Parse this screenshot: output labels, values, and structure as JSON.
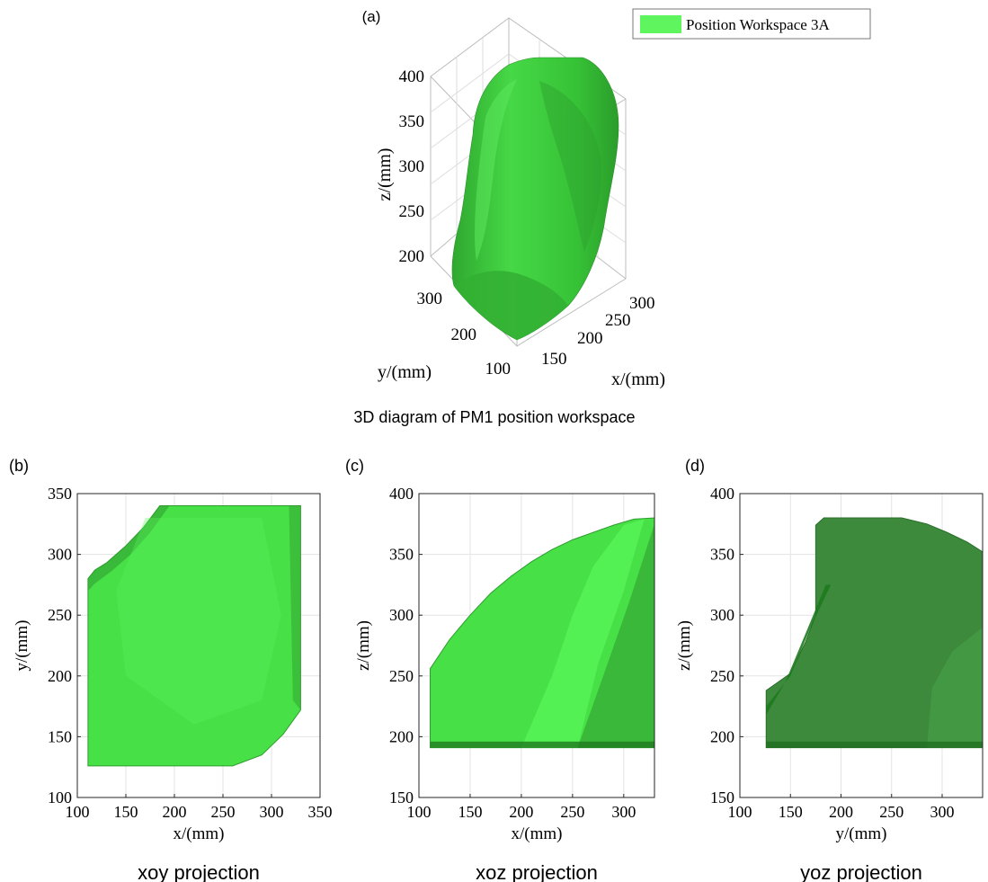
{
  "chart_data": [
    {
      "panel": "(a)",
      "type": "area",
      "title": "3D diagram of PM1 position workspace",
      "legend": {
        "label": "Position Workspace 3A",
        "color": "#5ef55e",
        "placement": "top-right"
      },
      "xlabel": "x/(mm)",
      "ylabel": "y/(mm)",
      "zlabel": "z/(mm)",
      "xticks": [
        150,
        200,
        250,
        300
      ],
      "yticks": [
        100,
        200,
        300
      ],
      "zticks": [
        200,
        250,
        300,
        350,
        400
      ],
      "grid": true
    },
    {
      "panel": "(b)",
      "type": "area",
      "title": "xoy projection",
      "xlabel": "x/(mm)",
      "ylabel": "y/(mm)",
      "xlim": [
        100,
        350
      ],
      "ylim": [
        100,
        350
      ],
      "xticks": [
        100,
        150,
        200,
        250,
        300,
        350
      ],
      "yticks": [
        100,
        150,
        200,
        250,
        300,
        350
      ],
      "grid": true,
      "region": {
        "x": [
          111,
          111,
          118,
          130,
          150,
          168,
          185,
          330,
          330,
          312,
          290,
          260,
          111
        ],
        "y": [
          126,
          280,
          287,
          293,
          307,
          322,
          340,
          340,
          172,
          152,
          135,
          126,
          126
        ]
      }
    },
    {
      "panel": "(c)",
      "type": "area",
      "title": "xoz projection",
      "xlabel": "x/(mm)",
      "ylabel": "z/(mm)",
      "xlim": [
        100,
        330
      ],
      "ylim": [
        150,
        400
      ],
      "xticks": [
        100,
        150,
        200,
        250,
        300
      ],
      "yticks": [
        150,
        200,
        250,
        300,
        350,
        400
      ],
      "grid": true,
      "region": {
        "x": [
          111,
          111,
          130,
          150,
          170,
          190,
          210,
          230,
          250,
          270,
          290,
          310,
          330,
          330,
          111
        ],
        "y": [
          191,
          256,
          280,
          300,
          318,
          332,
          344,
          354,
          362,
          368,
          374,
          379,
          380,
          191,
          191
        ]
      }
    },
    {
      "panel": "(d)",
      "type": "area",
      "title": "yoz projection",
      "xlabel": "y/(mm)",
      "ylabel": "z/(mm)",
      "xlim": [
        100,
        340
      ],
      "ylim": [
        150,
        400
      ],
      "xticks": [
        100,
        150,
        200,
        250,
        300
      ],
      "yticks": [
        150,
        200,
        250,
        300,
        350,
        400
      ],
      "grid": true,
      "region": {
        "x": [
          126,
          126,
          150,
          165,
          175,
          175,
          183,
          260,
          285,
          305,
          325,
          340,
          340,
          126
        ],
        "y": [
          191,
          238,
          252,
          278,
          300,
          374,
          380,
          380,
          375,
          368,
          360,
          352,
          191,
          191
        ]
      }
    }
  ]
}
